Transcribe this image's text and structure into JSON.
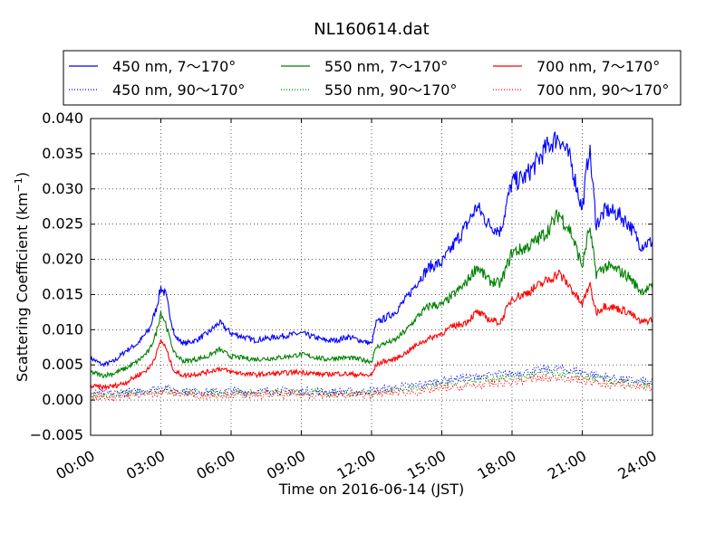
{
  "chart_data": {
    "type": "line",
    "title": "NL160614.dat",
    "xlabel": "Time on 2016-06-14 (JST)",
    "ylabel": "Scattering Coefficient (km",
    "ylabel_exponent": "−1",
    "ylabel_close": ")",
    "xlim": [
      0,
      24
    ],
    "ylim": [
      -0.005,
      0.04
    ],
    "x_ticks": [
      0,
      3,
      6,
      9,
      12,
      15,
      18,
      21,
      24
    ],
    "x_tick_labels": [
      "00:00",
      "03:00",
      "06:00",
      "09:00",
      "12:00",
      "15:00",
      "18:00",
      "21:00",
      "24:00"
    ],
    "y_ticks": [
      -0.005,
      0.0,
      0.005,
      0.01,
      0.015,
      0.02,
      0.025,
      0.03,
      0.035,
      0.04
    ],
    "y_tick_labels": [
      "−0.005",
      "0.000",
      "0.005",
      "0.010",
      "0.015",
      "0.020",
      "0.025",
      "0.030",
      "0.035",
      "0.040"
    ],
    "grid": true,
    "legend_placement": "top, above plot, 3 columns",
    "series": [
      {
        "name": "450 nm, 7～170°",
        "color": "#0000ff",
        "style": "solid",
        "x": [
          0,
          0.5,
          1,
          1.5,
          2,
          2.5,
          2.8,
          3,
          3.2,
          3.4,
          3.6,
          4,
          4.5,
          5,
          5.5,
          6,
          6.5,
          7,
          8,
          9,
          10,
          10.5,
          11,
          11.5,
          12,
          12.2,
          12.5,
          13,
          13.5,
          14,
          14.5,
          15,
          15.5,
          16,
          16.5,
          17,
          17.5,
          18,
          18.5,
          19,
          19.5,
          20,
          20.5,
          21,
          21.3,
          21.6,
          22,
          22.5,
          23,
          23.5,
          24
        ],
        "y": [
          0.006,
          0.005,
          0.0055,
          0.007,
          0.008,
          0.01,
          0.013,
          0.016,
          0.015,
          0.012,
          0.009,
          0.008,
          0.0085,
          0.0095,
          0.011,
          0.0095,
          0.009,
          0.0085,
          0.009,
          0.0095,
          0.0085,
          0.0085,
          0.009,
          0.0085,
          0.008,
          0.011,
          0.0115,
          0.0125,
          0.0145,
          0.017,
          0.019,
          0.0195,
          0.022,
          0.0245,
          0.0275,
          0.025,
          0.024,
          0.031,
          0.0315,
          0.0335,
          0.036,
          0.0375,
          0.034,
          0.027,
          0.036,
          0.025,
          0.027,
          0.0265,
          0.025,
          0.022,
          0.0225
        ]
      },
      {
        "name": "450 nm, 90～170°",
        "color": "#0000ff",
        "style": "dotted",
        "x": [
          0,
          1,
          2,
          3,
          4,
          5,
          6,
          7,
          8,
          9,
          10,
          11,
          12,
          13,
          14,
          15,
          16,
          17,
          18,
          19,
          20,
          21,
          22,
          23,
          24
        ],
        "y": [
          0.001,
          0.001,
          0.0012,
          0.0018,
          0.0013,
          0.0012,
          0.0013,
          0.0012,
          0.0013,
          0.0013,
          0.0012,
          0.0012,
          0.0013,
          0.0018,
          0.0022,
          0.0028,
          0.0032,
          0.0035,
          0.0038,
          0.0042,
          0.0045,
          0.004,
          0.0033,
          0.0028,
          0.0025
        ]
      },
      {
        "name": "550 nm, 7～170°",
        "color": "#008000",
        "style": "solid",
        "x": [
          0,
          0.5,
          1,
          1.5,
          2,
          2.5,
          2.8,
          3,
          3.2,
          3.4,
          3.6,
          4,
          4.5,
          5,
          5.5,
          6,
          6.5,
          7,
          8,
          9,
          10,
          10.5,
          11,
          11.5,
          12,
          12.2,
          12.5,
          13,
          13.5,
          14,
          14.5,
          15,
          15.5,
          16,
          16.5,
          17,
          17.5,
          18,
          18.5,
          19,
          19.5,
          20,
          20.5,
          21,
          21.3,
          21.6,
          22,
          22.5,
          23,
          23.5,
          24
        ],
        "y": [
          0.004,
          0.0035,
          0.0038,
          0.0045,
          0.0055,
          0.007,
          0.0095,
          0.0125,
          0.011,
          0.0085,
          0.0065,
          0.0055,
          0.0058,
          0.0062,
          0.0072,
          0.0062,
          0.006,
          0.0058,
          0.006,
          0.0065,
          0.0058,
          0.006,
          0.006,
          0.0058,
          0.0055,
          0.0075,
          0.008,
          0.0085,
          0.01,
          0.012,
          0.0135,
          0.0135,
          0.015,
          0.0165,
          0.019,
          0.017,
          0.0165,
          0.021,
          0.0215,
          0.0225,
          0.024,
          0.0265,
          0.024,
          0.019,
          0.0245,
          0.018,
          0.019,
          0.0185,
          0.0175,
          0.0155,
          0.016
        ]
      },
      {
        "name": "550 nm, 90～170°",
        "color": "#008000",
        "style": "dotted",
        "x": [
          0,
          1,
          2,
          3,
          4,
          5,
          6,
          7,
          8,
          9,
          10,
          11,
          12,
          13,
          14,
          15,
          16,
          17,
          18,
          19,
          20,
          21,
          22,
          23,
          24
        ],
        "y": [
          0.0008,
          0.0008,
          0.001,
          0.0015,
          0.0011,
          0.001,
          0.0011,
          0.001,
          0.0011,
          0.0011,
          0.001,
          0.001,
          0.0011,
          0.0015,
          0.0018,
          0.0023,
          0.0027,
          0.003,
          0.0032,
          0.0036,
          0.0038,
          0.0034,
          0.0028,
          0.0024,
          0.0021
        ]
      },
      {
        "name": "700 nm, 7～170°",
        "color": "#ff0000",
        "style": "solid",
        "x": [
          0,
          0.5,
          1,
          1.5,
          2,
          2.5,
          2.8,
          3,
          3.2,
          3.4,
          3.6,
          4,
          4.5,
          5,
          5.5,
          6,
          6.5,
          7,
          8,
          9,
          10,
          10.5,
          11,
          11.5,
          12,
          12.2,
          12.5,
          13,
          13.5,
          14,
          14.5,
          15,
          15.5,
          16,
          16.5,
          17,
          17.5,
          18,
          18.5,
          19,
          19.5,
          20,
          20.5,
          21,
          21.3,
          21.6,
          22,
          22.5,
          23,
          23.5,
          24
        ],
        "y": [
          0.002,
          0.0018,
          0.002,
          0.0025,
          0.0035,
          0.0045,
          0.0065,
          0.0085,
          0.0075,
          0.0055,
          0.004,
          0.0035,
          0.0037,
          0.004,
          0.0045,
          0.004,
          0.0038,
          0.0036,
          0.0038,
          0.004,
          0.0036,
          0.0038,
          0.0037,
          0.0036,
          0.0035,
          0.005,
          0.0055,
          0.0058,
          0.0068,
          0.008,
          0.0088,
          0.0095,
          0.0105,
          0.011,
          0.0125,
          0.0115,
          0.011,
          0.0145,
          0.015,
          0.016,
          0.017,
          0.018,
          0.016,
          0.0135,
          0.0165,
          0.0125,
          0.0135,
          0.013,
          0.0125,
          0.011,
          0.0115
        ]
      },
      {
        "name": "700 nm, 90～170°",
        "color": "#ff0000",
        "style": "dotted",
        "x": [
          0,
          1,
          2,
          3,
          4,
          5,
          6,
          7,
          8,
          9,
          10,
          11,
          12,
          13,
          14,
          15,
          16,
          17,
          18,
          19,
          20,
          21,
          22,
          23,
          24
        ],
        "y": [
          0.0005,
          0.0005,
          0.0007,
          0.0012,
          0.0008,
          0.0007,
          0.0008,
          0.0007,
          0.0008,
          0.0008,
          0.0007,
          0.0007,
          0.0008,
          0.0011,
          0.0012,
          0.0016,
          0.0019,
          0.0022,
          0.0025,
          0.003,
          0.0032,
          0.0028,
          0.0022,
          0.002,
          0.0017
        ]
      }
    ]
  }
}
